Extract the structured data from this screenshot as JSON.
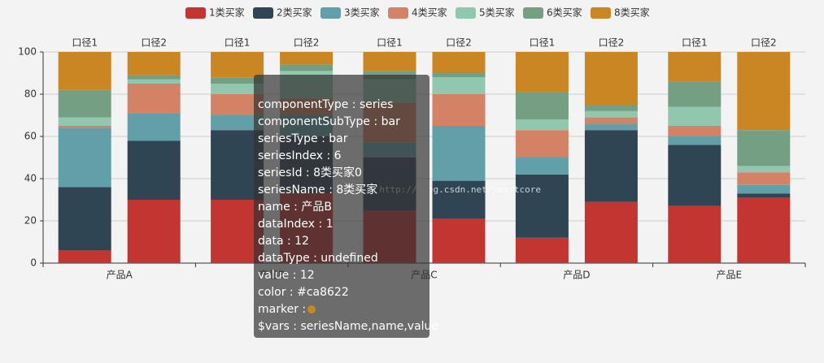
{
  "chart_data": {
    "type": "bar",
    "stacked": true,
    "categories": [
      "产品A",
      "产品B",
      "产品C",
      "产品D",
      "产品E"
    ],
    "stack_labels": [
      "口径1",
      "口径2"
    ],
    "series": [
      {
        "name": "1类买家",
        "color": "#c23531",
        "values": [
          [
            6,
            30
          ],
          [
            30,
            33
          ],
          [
            25,
            21
          ],
          [
            12,
            29
          ],
          [
            27,
            31
          ]
        ]
      },
      {
        "name": "2类买家",
        "color": "#2f4554",
        "values": [
          [
            30,
            28
          ],
          [
            33,
            27
          ],
          [
            25,
            18
          ],
          [
            30,
            34
          ],
          [
            29,
            2
          ]
        ]
      },
      {
        "name": "3类买家",
        "color": "#61a0a8",
        "values": [
          [
            28,
            13
          ],
          [
            7,
            10
          ],
          [
            7,
            26
          ],
          [
            8,
            3
          ],
          [
            4,
            4
          ]
        ]
      },
      {
        "name": "4类买家",
        "color": "#d48265",
        "values": [
          [
            1,
            14
          ],
          [
            10,
            8
          ],
          [
            19,
            15
          ],
          [
            13,
            3
          ],
          [
            5,
            6
          ]
        ]
      },
      {
        "name": "5类买家",
        "color": "#91c7ae",
        "values": [
          [
            4,
            2
          ],
          [
            5,
            13
          ],
          [
            11,
            8
          ],
          [
            5,
            3
          ],
          [
            9,
            3
          ]
        ]
      },
      {
        "name": "6类买家",
        "color": "#749f83",
        "values": [
          [
            13,
            2
          ],
          [
            3,
            3
          ],
          [
            4,
            2
          ],
          [
            13,
            3
          ],
          [
            12,
            17
          ]
        ]
      },
      {
        "name": "8类买家",
        "color": "#ca8622",
        "values": [
          [
            18,
            11
          ],
          [
            12,
            6
          ],
          [
            9,
            10
          ],
          [
            19,
            25
          ],
          [
            14,
            37
          ]
        ]
      }
    ],
    "ylim": [
      0,
      100
    ],
    "yticks": [
      0,
      20,
      40,
      60,
      80,
      100
    ],
    "grid": true,
    "legend": "top"
  },
  "watermark": "http://blog.csdn.net/smartcore",
  "tooltip": {
    "lines": [
      "componentType : series",
      "componentSubType : bar",
      "seriesType : bar",
      "seriesIndex : 6",
      "seriesId : 8类买家0",
      "seriesName : 8类买家",
      "name : 产品B",
      "dataIndex : 1",
      "data : 12",
      "dataType : undefined",
      "value : 12",
      "color : #ca8622",
      "marker :",
      "$vars : seriesName,name,value"
    ]
  }
}
